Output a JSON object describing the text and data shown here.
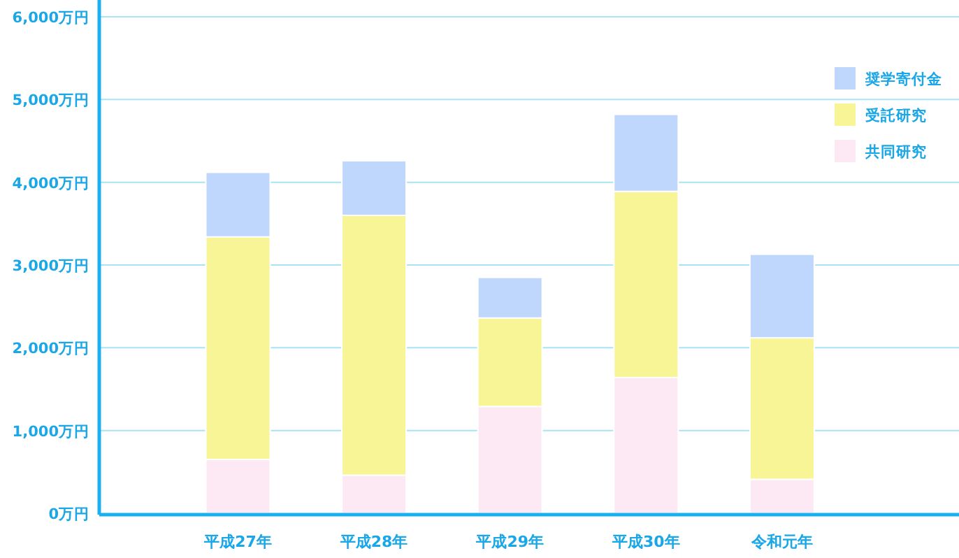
{
  "chart_data": {
    "type": "bar",
    "stacked": true,
    "categories": [
      "平成27年",
      "平成28年",
      "平成29年",
      "平成30年",
      "令和元年"
    ],
    "series": [
      {
        "name": "共同研究",
        "color": "#fde9f4",
        "values": [
          650,
          460,
          1290,
          1640,
          410
        ]
      },
      {
        "name": "受託研究",
        "color": "#f8f597",
        "values": [
          2690,
          3140,
          1070,
          2250,
          1710
        ]
      },
      {
        "name": "奨学寄付金",
        "color": "#bfd7fd",
        "values": [
          780,
          660,
          490,
          930,
          1010
        ]
      }
    ],
    "ylim": [
      0,
      6000
    ],
    "yticks": [
      {
        "value": 0,
        "label": "0万円"
      },
      {
        "value": 1000,
        "label": "1,000万円"
      },
      {
        "value": 2000,
        "label": "2,000万円"
      },
      {
        "value": 3000,
        "label": "3,000万円"
      },
      {
        "value": 4000,
        "label": "4,000万円"
      },
      {
        "value": 5000,
        "label": "5,000万円"
      },
      {
        "value": 6000,
        "label": "6,000万円"
      }
    ],
    "grid": "y",
    "legend": "top right"
  }
}
